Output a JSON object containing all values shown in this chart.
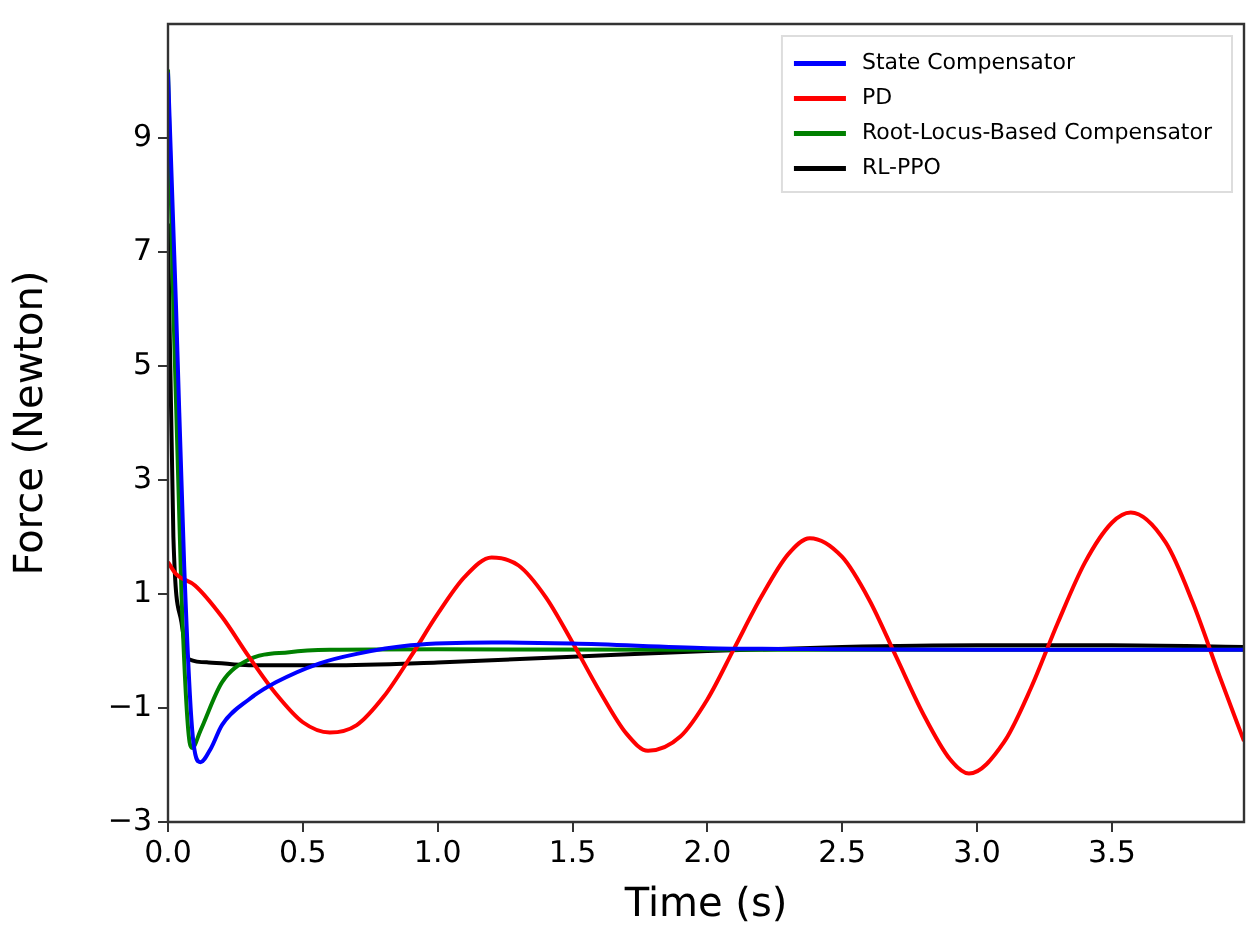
{
  "chart_data": {
    "type": "line",
    "xlabel": "Time (s)",
    "ylabel": "Force (Newton)",
    "xlim": [
      0,
      3.99
    ],
    "ylim": [
      -3,
      11
    ],
    "xticks": [
      {
        "value": 0,
        "label": "0.0"
      },
      {
        "value": 0.5,
        "label": "0.5"
      },
      {
        "value": 1,
        "label": "1.0"
      },
      {
        "value": 1.5,
        "label": "1.5"
      },
      {
        "value": 2,
        "label": "2.0"
      },
      {
        "value": 2.5,
        "label": "2.5"
      },
      {
        "value": 3,
        "label": "3.0"
      },
      {
        "value": 3.5,
        "label": "3.5"
      }
    ],
    "yticks": [
      -3,
      -1,
      1,
      3,
      5,
      7,
      9
    ],
    "grid": false,
    "legend": "top right",
    "marker": "none",
    "line_style": "solid",
    "series": [
      {
        "name": "State Compensator",
        "color": "#0000ff",
        "x": [
          0,
          0.03,
          0.06,
          0.09,
          0.12,
          0.16,
          0.2,
          0.3,
          0.4,
          0.56,
          0.7,
          0.9,
          1.2,
          1.5,
          2.0,
          2.5,
          3.0,
          3.99
        ],
        "values": [
          10.15,
          6,
          1.5,
          -1.4,
          -1.95,
          -1.7,
          -1.3,
          -0.85,
          -0.55,
          -0.22,
          -0.05,
          0.1,
          0.15,
          0.13,
          0.05,
          0.03,
          0.02,
          0.02
        ]
      },
      {
        "name": "PD",
        "color": "#ff0000",
        "x": [
          0,
          0.03,
          0.1,
          0.2,
          0.3,
          0.4,
          0.5,
          0.6,
          0.7,
          0.8,
          0.9,
          1.0,
          1.1,
          1.2,
          1.3,
          1.4,
          1.5,
          1.6,
          1.7,
          1.78,
          1.9,
          2.0,
          2.1,
          2.2,
          2.3,
          2.38,
          2.5,
          2.6,
          2.7,
          2.8,
          2.9,
          2.97,
          3.1,
          3.2,
          3.3,
          3.4,
          3.5,
          3.57,
          3.7,
          3.8,
          3.9,
          3.99
        ],
        "values": [
          1.56,
          1.35,
          1.15,
          0.6,
          -0.1,
          -0.75,
          -1.25,
          -1.43,
          -1.3,
          -0.8,
          -0.1,
          0.65,
          1.3,
          1.64,
          1.5,
          0.95,
          0.15,
          -0.7,
          -1.45,
          -1.75,
          -1.5,
          -0.85,
          0.05,
          0.95,
          1.7,
          1.98,
          1.65,
          0.9,
          -0.1,
          -1.1,
          -1.9,
          -2.15,
          -1.6,
          -0.65,
          0.5,
          1.55,
          2.25,
          2.43,
          1.9,
          0.85,
          -0.45,
          -1.58
        ]
      },
      {
        "name": "Root-Locus-Based Compensator",
        "color": "#008000",
        "x": [
          0,
          0.02,
          0.05,
          0.08,
          0.09,
          0.12,
          0.2,
          0.3,
          0.45,
          0.6,
          1.0,
          2.0,
          3.99
        ],
        "values": [
          10.2,
          6,
          1,
          -1.6,
          -1.7,
          -1.4,
          -0.55,
          -0.15,
          -0.02,
          0.02,
          0.03,
          0.02,
          0.02
        ]
      },
      {
        "name": "RL-PPO",
        "color": "#000000",
        "x": [
          0,
          0.02,
          0.05,
          0.08,
          0.15,
          0.3,
          0.6,
          1.0,
          1.5,
          2.0,
          2.5,
          3.0,
          3.5,
          3.99
        ],
        "values": [
          7.5,
          2,
          0.5,
          -0.15,
          -0.2,
          -0.25,
          -0.25,
          -0.2,
          -0.1,
          0.0,
          0.07,
          0.1,
          0.1,
          0.07
        ]
      }
    ]
  }
}
